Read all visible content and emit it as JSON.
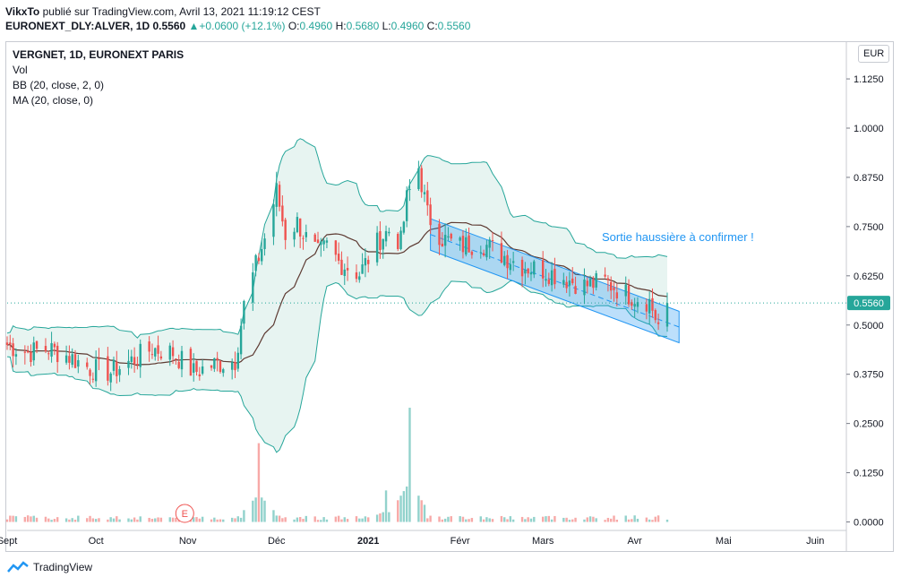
{
  "header": {
    "line1_user": "VikxTo",
    "line1_text": "publié sur TradingView.com, Avril 13, 2021 11:19:12 CEST",
    "symbol": "EURONEXT_DLY:ALVER, 1D",
    "price": "0.5560",
    "change": "+0.0600 (+12.1%)",
    "o_label": "O:",
    "o_value": "0.4960",
    "h_label": "H:",
    "h_value": "0.5680",
    "l_label": "L:",
    "l_value": "0.4960",
    "c_label": "C:",
    "c_value": "0.5560"
  },
  "legend": {
    "title": "VERGNET, 1D, EURONEXT PARIS",
    "vol": "Vol",
    "bb": "BB (20, close, 2, 0)",
    "ma": "MA (20, close, 0)"
  },
  "currency": "EUR",
  "annotation": "Sortie haussière à confirmer !",
  "earnings_marker": "E",
  "brand": "TradingView",
  "colors": {
    "up": "#26a69a",
    "down": "#ef5350",
    "bb_band": "#26a69a",
    "bb_fill": "#e7f4f1",
    "ma": "#5d3a32",
    "channel": "#2196f3",
    "annotation": "#2196f3"
  },
  "chart_data": {
    "type": "candlestick",
    "y_axis": {
      "ticks": [
        "1.1250",
        "1.0000",
        "0.8750",
        "0.7500",
        "0.6250",
        "0.5000",
        "0.3750",
        "0.2500",
        "0.1250",
        "0.0000"
      ],
      "range": [
        -0.01,
        1.19
      ],
      "last_price": "0.5560"
    },
    "x_axis": {
      "labels": [
        "Sept",
        "Oct",
        "Nov",
        "Déc",
        "2021",
        "Févr",
        "Mars",
        "Avr",
        "Mai",
        "Juin"
      ],
      "label_dates": [
        "2020-09-01",
        "2020-10-01",
        "2020-11-01",
        "2020-12-01",
        "2021-01-01",
        "2021-02-01",
        "2021-03-01",
        "2021-04-01",
        "2021-05-01",
        "2021-06-01"
      ],
      "range": [
        "2020-09-01",
        "2021-06-10"
      ]
    },
    "close_series": {
      "dates": [
        "2020-09-01",
        "2020-09-08",
        "2020-09-15",
        "2020-09-22",
        "2020-09-29",
        "2020-10-06",
        "2020-10-13",
        "2020-10-20",
        "2020-10-27",
        "2020-11-03",
        "2020-11-10",
        "2020-11-17",
        "2020-11-20",
        "2020-11-24",
        "2020-11-27",
        "2020-12-01",
        "2020-12-04",
        "2020-12-08",
        "2020-12-11",
        "2020-12-15",
        "2020-12-18",
        "2020-12-22",
        "2020-12-29",
        "2021-01-05",
        "2021-01-08",
        "2021-01-12",
        "2021-01-14",
        "2021-01-18",
        "2021-01-21",
        "2021-01-26",
        "2021-02-01",
        "2021-02-08",
        "2021-02-15",
        "2021-02-22",
        "2021-03-01",
        "2021-03-08",
        "2021-03-15",
        "2021-03-22",
        "2021-03-29",
        "2021-04-06",
        "2021-04-09",
        "2021-04-12"
      ],
      "close": [
        0.45,
        0.43,
        0.44,
        0.42,
        0.39,
        0.38,
        0.41,
        0.44,
        0.43,
        0.38,
        0.4,
        0.41,
        0.55,
        0.65,
        0.72,
        0.84,
        0.73,
        0.76,
        0.72,
        0.68,
        0.7,
        0.66,
        0.63,
        0.72,
        0.74,
        0.71,
        0.82,
        0.9,
        0.78,
        0.72,
        0.7,
        0.71,
        0.68,
        0.65,
        0.64,
        0.62,
        0.6,
        0.61,
        0.58,
        0.56,
        0.5,
        0.556
      ]
    },
    "volume_peaks": [
      {
        "date": "2020-11-25",
        "value": 0.2
      },
      {
        "date": "2021-01-15",
        "value": 0.29
      },
      {
        "date": "2021-01-07",
        "value": 0.08
      }
    ],
    "channel": {
      "upper": [
        {
          "date": "2021-01-22",
          "value": 0.77
        },
        {
          "date": "2021-04-16",
          "value": 0.535
        }
      ],
      "lower": [
        {
          "date": "2021-01-22",
          "value": 0.69
        },
        {
          "date": "2021-04-16",
          "value": 0.455
        }
      ]
    },
    "bollinger": {
      "period": 20,
      "stddev": 2
    },
    "moving_average": {
      "period": 20
    }
  }
}
